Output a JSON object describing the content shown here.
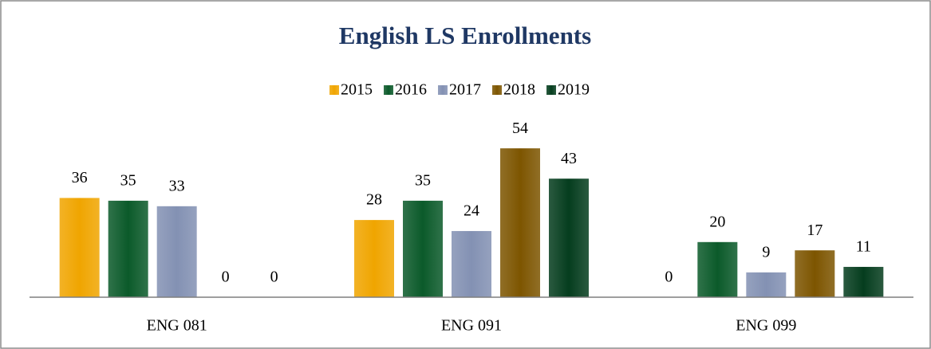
{
  "chart_data": {
    "type": "bar",
    "title": "English LS Enrollments",
    "categories": [
      "ENG 081",
      "ENG 091",
      "ENG 099"
    ],
    "series": [
      {
        "name": "2015",
        "color": "#f0a500",
        "values": [
          36,
          28,
          0
        ]
      },
      {
        "name": "2016",
        "color": "#0b5a2a",
        "values": [
          35,
          35,
          20
        ]
      },
      {
        "name": "2017",
        "color": "#8391b3",
        "values": [
          33,
          24,
          9
        ]
      },
      {
        "name": "2018",
        "color": "#7d5500",
        "values": [
          0,
          54,
          17
        ]
      },
      {
        "name": "2019",
        "color": "#053d1e",
        "values": [
          0,
          43,
          11
        ]
      }
    ],
    "legend": "top"
  }
}
